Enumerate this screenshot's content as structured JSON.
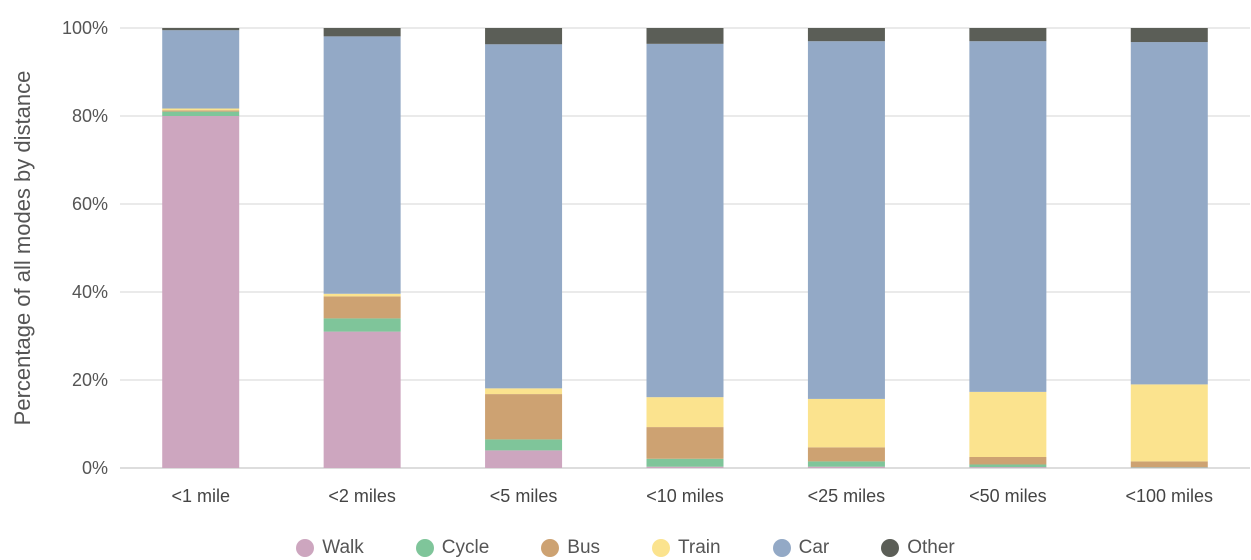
{
  "chart_data": {
    "type": "bar",
    "stacked": true,
    "ylabel": "Percentage of all modes by distance",
    "ylim": [
      0,
      100
    ],
    "yticks": [
      "0%",
      "20%",
      "40%",
      "60%",
      "80%",
      "100%"
    ],
    "grid": true,
    "legend_position": "bottom",
    "categories": [
      "<1 mile",
      "<2 miles",
      "<5 miles",
      "<10 miles",
      "<25 miles",
      "<50 miles",
      "<100 miles"
    ],
    "series": [
      {
        "name": "Walk",
        "color": "#cda6bf",
        "values": [
          80.0,
          31.0,
          4.0,
          0.3,
          0.3,
          0.2,
          0.1
        ]
      },
      {
        "name": "Cycle",
        "color": "#7fc59a",
        "values": [
          1.0,
          3.0,
          2.5,
          1.8,
          1.2,
          0.6,
          0.1
        ]
      },
      {
        "name": "Bus",
        "color": "#cda272",
        "values": [
          0.3,
          5.0,
          10.3,
          7.2,
          3.2,
          1.7,
          1.3
        ]
      },
      {
        "name": "Train",
        "color": "#fbe38e",
        "values": [
          0.4,
          0.6,
          1.3,
          6.8,
          11.0,
          14.8,
          17.5
        ]
      },
      {
        "name": "Car",
        "color": "#93a9c6",
        "values": [
          17.8,
          58.5,
          78.2,
          80.3,
          81.3,
          79.7,
          77.8
        ]
      },
      {
        "name": "Other",
        "color": "#5b5e57",
        "values": [
          0.5,
          1.9,
          3.7,
          3.6,
          3.0,
          3.0,
          3.2
        ]
      }
    ]
  }
}
